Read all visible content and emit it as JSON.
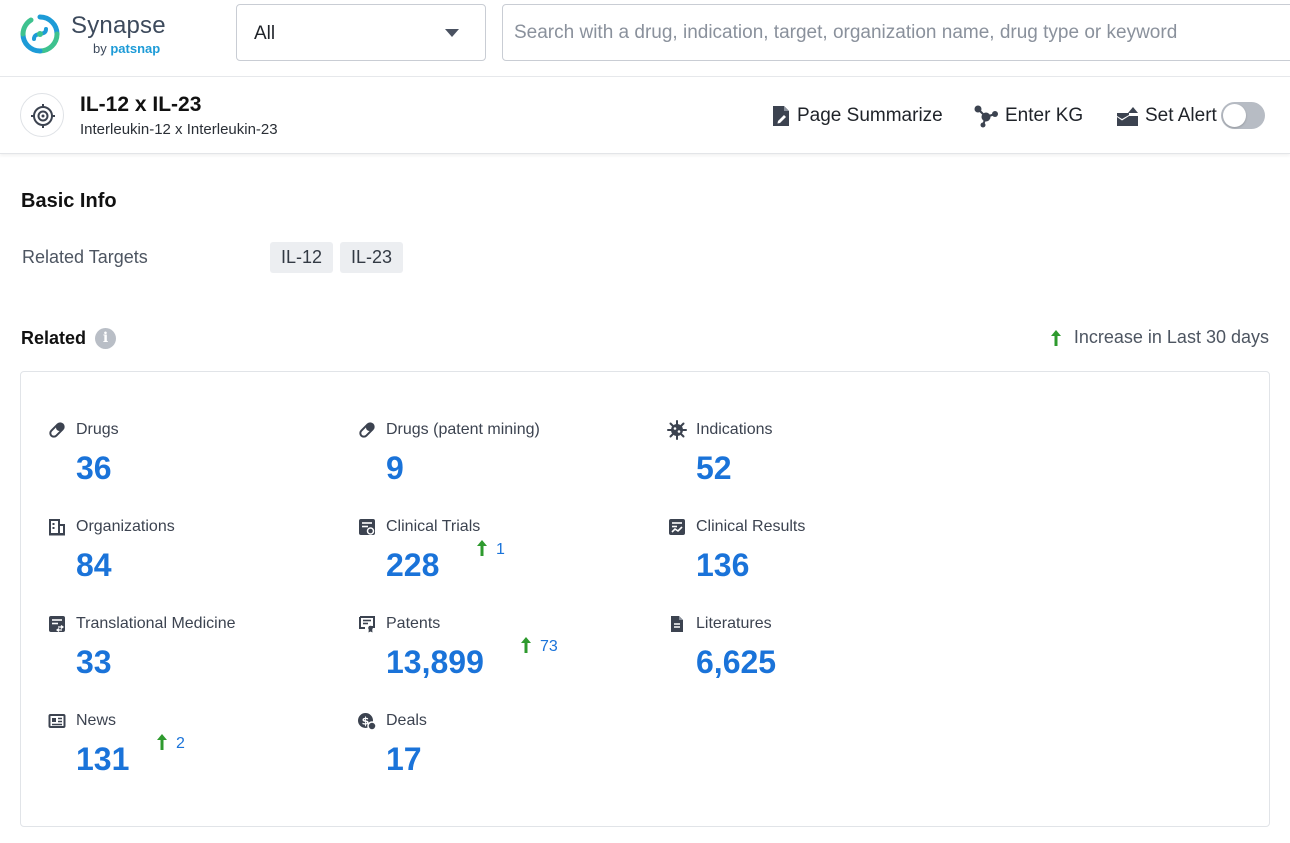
{
  "brand": {
    "name": "Synapse",
    "by": "by",
    "by_brand": "patsnap"
  },
  "search": {
    "scope_value": "All",
    "placeholder": "Search with a drug, indication, target, organization name, drug type or keyword"
  },
  "entity": {
    "title": "IL-12 x IL-23",
    "subtitle": "Interleukin-12 x Interleukin-23"
  },
  "actions": {
    "summarize": "Page Summarize",
    "kg": "Enter KG",
    "alert": "Set Alert",
    "alert_enabled": false
  },
  "basic_info": {
    "title": "Basic Info",
    "related_targets_label": "Related Targets",
    "targets": [
      "IL-12",
      "IL-23"
    ]
  },
  "related": {
    "title": "Related",
    "legend": "Increase in Last 30 days",
    "stats": [
      {
        "label": "Drugs",
        "value": "36",
        "icon": "pill-icon"
      },
      {
        "label": "Drugs (patent mining)",
        "value": "9",
        "icon": "pill-icon"
      },
      {
        "label": "Indications",
        "value": "52",
        "icon": "virus-icon"
      },
      {
        "label": "Organizations",
        "value": "84",
        "icon": "building-icon"
      },
      {
        "label": "Clinical Trials",
        "value": "228",
        "increase": "1",
        "icon": "clinical-trials-icon"
      },
      {
        "label": "Clinical Results",
        "value": "136",
        "icon": "clinical-results-icon"
      },
      {
        "label": "Translational Medicine",
        "value": "33",
        "icon": "translational-medicine-icon"
      },
      {
        "label": "Patents",
        "value": "13,899",
        "increase": "73",
        "icon": "patent-icon"
      },
      {
        "label": "Literatures",
        "value": "6,625",
        "icon": "document-icon"
      },
      {
        "label": "News",
        "value": "131",
        "increase": "2",
        "icon": "newspaper-icon"
      },
      {
        "label": "Deals",
        "value": "17",
        "icon": "deals-icon"
      }
    ]
  },
  "colors": {
    "accent": "#1a73d9",
    "increase": "#2e9a2e",
    "brand": "#1d9bd7",
    "brand_green": "#3ec28f"
  }
}
